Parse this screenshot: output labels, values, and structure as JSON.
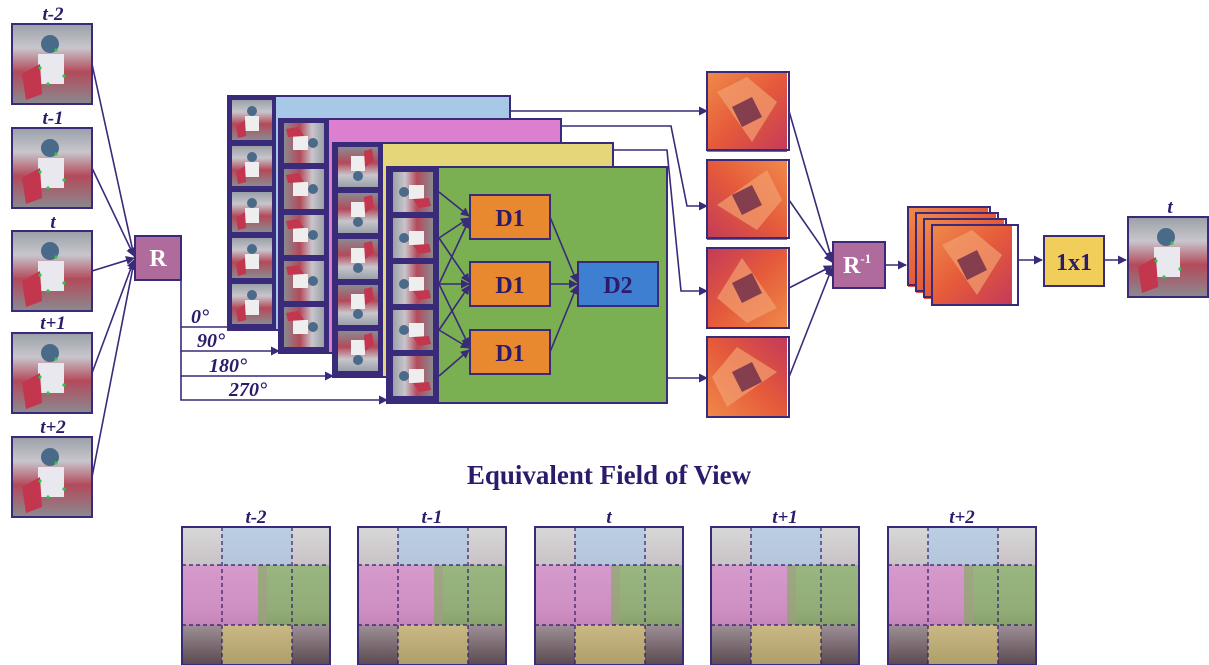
{
  "colors": {
    "outline": "#3a2a7a",
    "text": "#2c1a6b",
    "r_box": "#b06b9d",
    "d1_box": "#e8892f",
    "d2_box": "#3f7fd1",
    "panel_green": "#7aaf52",
    "panel_yellow": "#e6d67a",
    "panel_pink": "#dd7fcf",
    "panel_blue": "#a8c8e8",
    "conv_box": "#f1cd5a",
    "feature_map": "#e85a3a"
  },
  "inputs": {
    "frame_labels": [
      "t-2",
      "t-1",
      "t",
      "t+1",
      "t+2"
    ]
  },
  "rotation": {
    "box_label": "R",
    "angles": [
      "0°",
      "90°",
      "180°",
      "270°"
    ]
  },
  "network": {
    "d1_label": "D1",
    "d2_label": "D2"
  },
  "inverse": {
    "box_label": "R",
    "superscript": "-1"
  },
  "conv": {
    "label": "1x1"
  },
  "output": {
    "label": "t"
  },
  "fov": {
    "title": "Equivalent Field of View",
    "frame_labels": [
      "t-2",
      "t-1",
      "t",
      "t+1",
      "t+2"
    ]
  },
  "icons": {
    "input_frame": "skier-noisy-frame-icon",
    "output_frame": "skier-denoised-frame-icon",
    "feature_map": "feature-map-icon"
  }
}
